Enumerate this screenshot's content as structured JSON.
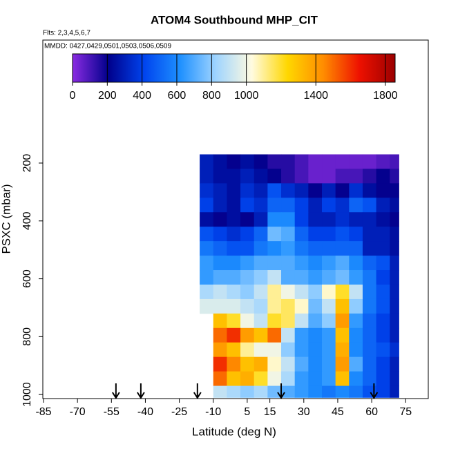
{
  "chart_data": {
    "type": "heatmap",
    "title": "ATOM4 Southbound MHP_CIT",
    "subtitle": "Flts: 2,3,4,5,6,7",
    "annotation": "MMDD: 0427,0429,0501,0503,0506,0509",
    "x_label": "Latitude (deg N)",
    "y_label": "PSXC (mbar)",
    "xlim": [
      -85,
      85
    ],
    "ylim": [
      1014,
      -225
    ],
    "xticks": [
      -85,
      -70,
      -55,
      -40,
      -25,
      -10,
      5,
      15,
      30,
      45,
      60,
      75
    ],
    "yticks": [
      200,
      400,
      600,
      800,
      1000
    ],
    "clim": [
      0,
      1856
    ],
    "colorbar_ticks": [
      0,
      200,
      400,
      600,
      800,
      1000,
      1400,
      1800
    ],
    "colormap": [
      "#8a2be2",
      "#00008b",
      "#0044ee",
      "#1e90ff",
      "#9fd4ff",
      "#fffbe0",
      "#ffd700",
      "#ff8c00",
      "#ee1100",
      "#9b0000"
    ],
    "arrows": [
      -53,
      -42,
      -17,
      20,
      61
    ],
    "x_edges": [
      -16,
      -10,
      -4,
      2,
      8,
      14,
      20,
      26,
      32,
      38,
      44,
      50,
      56,
      62,
      68,
      72
    ],
    "y_edges": [
      170,
      220,
      270,
      320,
      370,
      420,
      470,
      520,
      570,
      620,
      670,
      720,
      770,
      820,
      870,
      920,
      970,
      1010
    ],
    "values": [
      [
        300,
        250,
        200,
        250,
        200,
        150,
        150,
        100,
        50,
        50,
        50,
        50,
        50,
        80,
        100
      ],
      [
        300,
        250,
        250,
        300,
        250,
        200,
        150,
        100,
        50,
        50,
        100,
        100,
        150,
        200,
        150
      ],
      [
        350,
        300,
        250,
        350,
        300,
        450,
        350,
        300,
        200,
        300,
        200,
        350,
        250,
        200,
        200
      ],
      [
        400,
        300,
        250,
        400,
        350,
        500,
        500,
        400,
        300,
        400,
        350,
        500,
        450,
        300,
        250
      ],
      [
        250,
        200,
        250,
        200,
        300,
        600,
        600,
        400,
        300,
        300,
        350,
        300,
        300,
        250,
        200
      ],
      [
        450,
        400,
        350,
        400,
        500,
        750,
        700,
        500,
        400,
        400,
        450,
        400,
        300,
        300,
        250
      ],
      [
        550,
        500,
        450,
        450,
        550,
        600,
        650,
        550,
        500,
        500,
        500,
        500,
        300,
        300,
        250
      ],
      [
        650,
        600,
        600,
        650,
        700,
        700,
        700,
        650,
        600,
        650,
        700,
        600,
        500,
        450,
        300
      ],
      [
        650,
        700,
        700,
        750,
        800,
        900,
        700,
        700,
        650,
        700,
        750,
        650,
        550,
        400,
        300
      ],
      [
        850,
        900,
        850,
        800,
        900,
        1100,
        1000,
        900,
        800,
        1050,
        1200,
        900,
        550,
        450,
        300
      ],
      [
        950,
        950,
        950,
        900,
        850,
        1100,
        1150,
        1050,
        750,
        900,
        1300,
        800,
        550,
        450,
        300
      ],
      [
        null,
        1300,
        1200,
        1000,
        900,
        1200,
        1150,
        900,
        700,
        800,
        1400,
        650,
        500,
        400,
        300
      ],
      [
        null,
        1500,
        1600,
        1400,
        1300,
        1500,
        900,
        650,
        600,
        650,
        1300,
        600,
        500,
        400,
        300
      ],
      [
        null,
        1400,
        1300,
        1100,
        1000,
        1000,
        800,
        650,
        600,
        650,
        1350,
        600,
        500,
        450,
        350
      ],
      [
        null,
        1600,
        1450,
        1300,
        1350,
        1050,
        900,
        700,
        600,
        650,
        1400,
        700,
        500,
        400,
        300
      ],
      [
        null,
        1500,
        1300,
        1350,
        1200,
        1000,
        850,
        650,
        600,
        650,
        1300,
        600,
        500,
        400,
        300
      ],
      [
        null,
        900,
        850,
        800,
        850,
        750,
        700,
        650,
        600,
        550,
        600,
        550,
        450,
        400,
        300
      ]
    ]
  }
}
